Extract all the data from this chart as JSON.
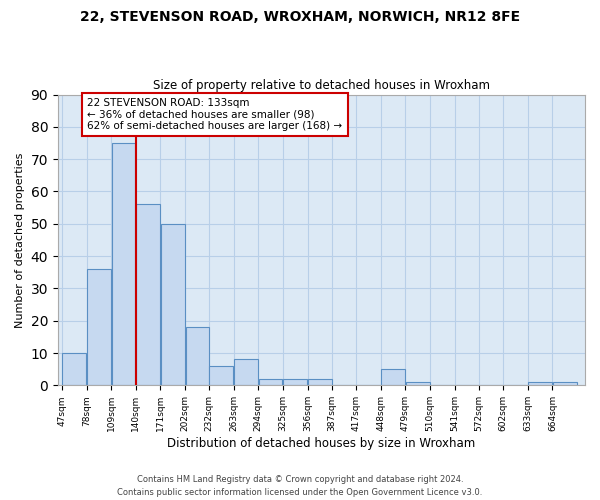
{
  "title": "22, STEVENSON ROAD, WROXHAM, NORWICH, NR12 8FE",
  "subtitle": "Size of property relative to detached houses in Wroxham",
  "xlabel": "Distribution of detached houses by size in Wroxham",
  "ylabel": "Number of detached properties",
  "bar_labels": [
    "47sqm",
    "78sqm",
    "109sqm",
    "140sqm",
    "171sqm",
    "202sqm",
    "232sqm",
    "263sqm",
    "294sqm",
    "325sqm",
    "356sqm",
    "387sqm",
    "417sqm",
    "448sqm",
    "479sqm",
    "510sqm",
    "541sqm",
    "572sqm",
    "602sqm",
    "633sqm",
    "664sqm"
  ],
  "bar_values": [
    10,
    36,
    75,
    56,
    50,
    18,
    6,
    8,
    2,
    2,
    2,
    0,
    0,
    5,
    1,
    0,
    0,
    0,
    0,
    1,
    1
  ],
  "bar_color": "#c6d9f0",
  "bar_edge_color": "#5a8fc3",
  "bin_edges": [
    47,
    78,
    109,
    140,
    171,
    202,
    232,
    263,
    294,
    325,
    356,
    387,
    417,
    448,
    479,
    510,
    541,
    572,
    602,
    633,
    664,
    695
  ],
  "annotation_title": "22 STEVENSON ROAD: 133sqm",
  "annotation_line1": "← 36% of detached houses are smaller (98)",
  "annotation_line2": "62% of semi-detached houses are larger (168) →",
  "annotation_box_color": "#ffffff",
  "annotation_box_edge": "#cc0000",
  "vline_color": "#cc0000",
  "vline_x": 140,
  "ylim": [
    0,
    90
  ],
  "yticks": [
    0,
    10,
    20,
    30,
    40,
    50,
    60,
    70,
    80,
    90
  ],
  "footer1": "Contains HM Land Registry data © Crown copyright and database right 2024.",
  "footer2": "Contains public sector information licensed under the Open Government Licence v3.0.",
  "bg_color": "#ffffff",
  "ax_bg_color": "#dce9f5",
  "grid_color": "#b8cfe8"
}
